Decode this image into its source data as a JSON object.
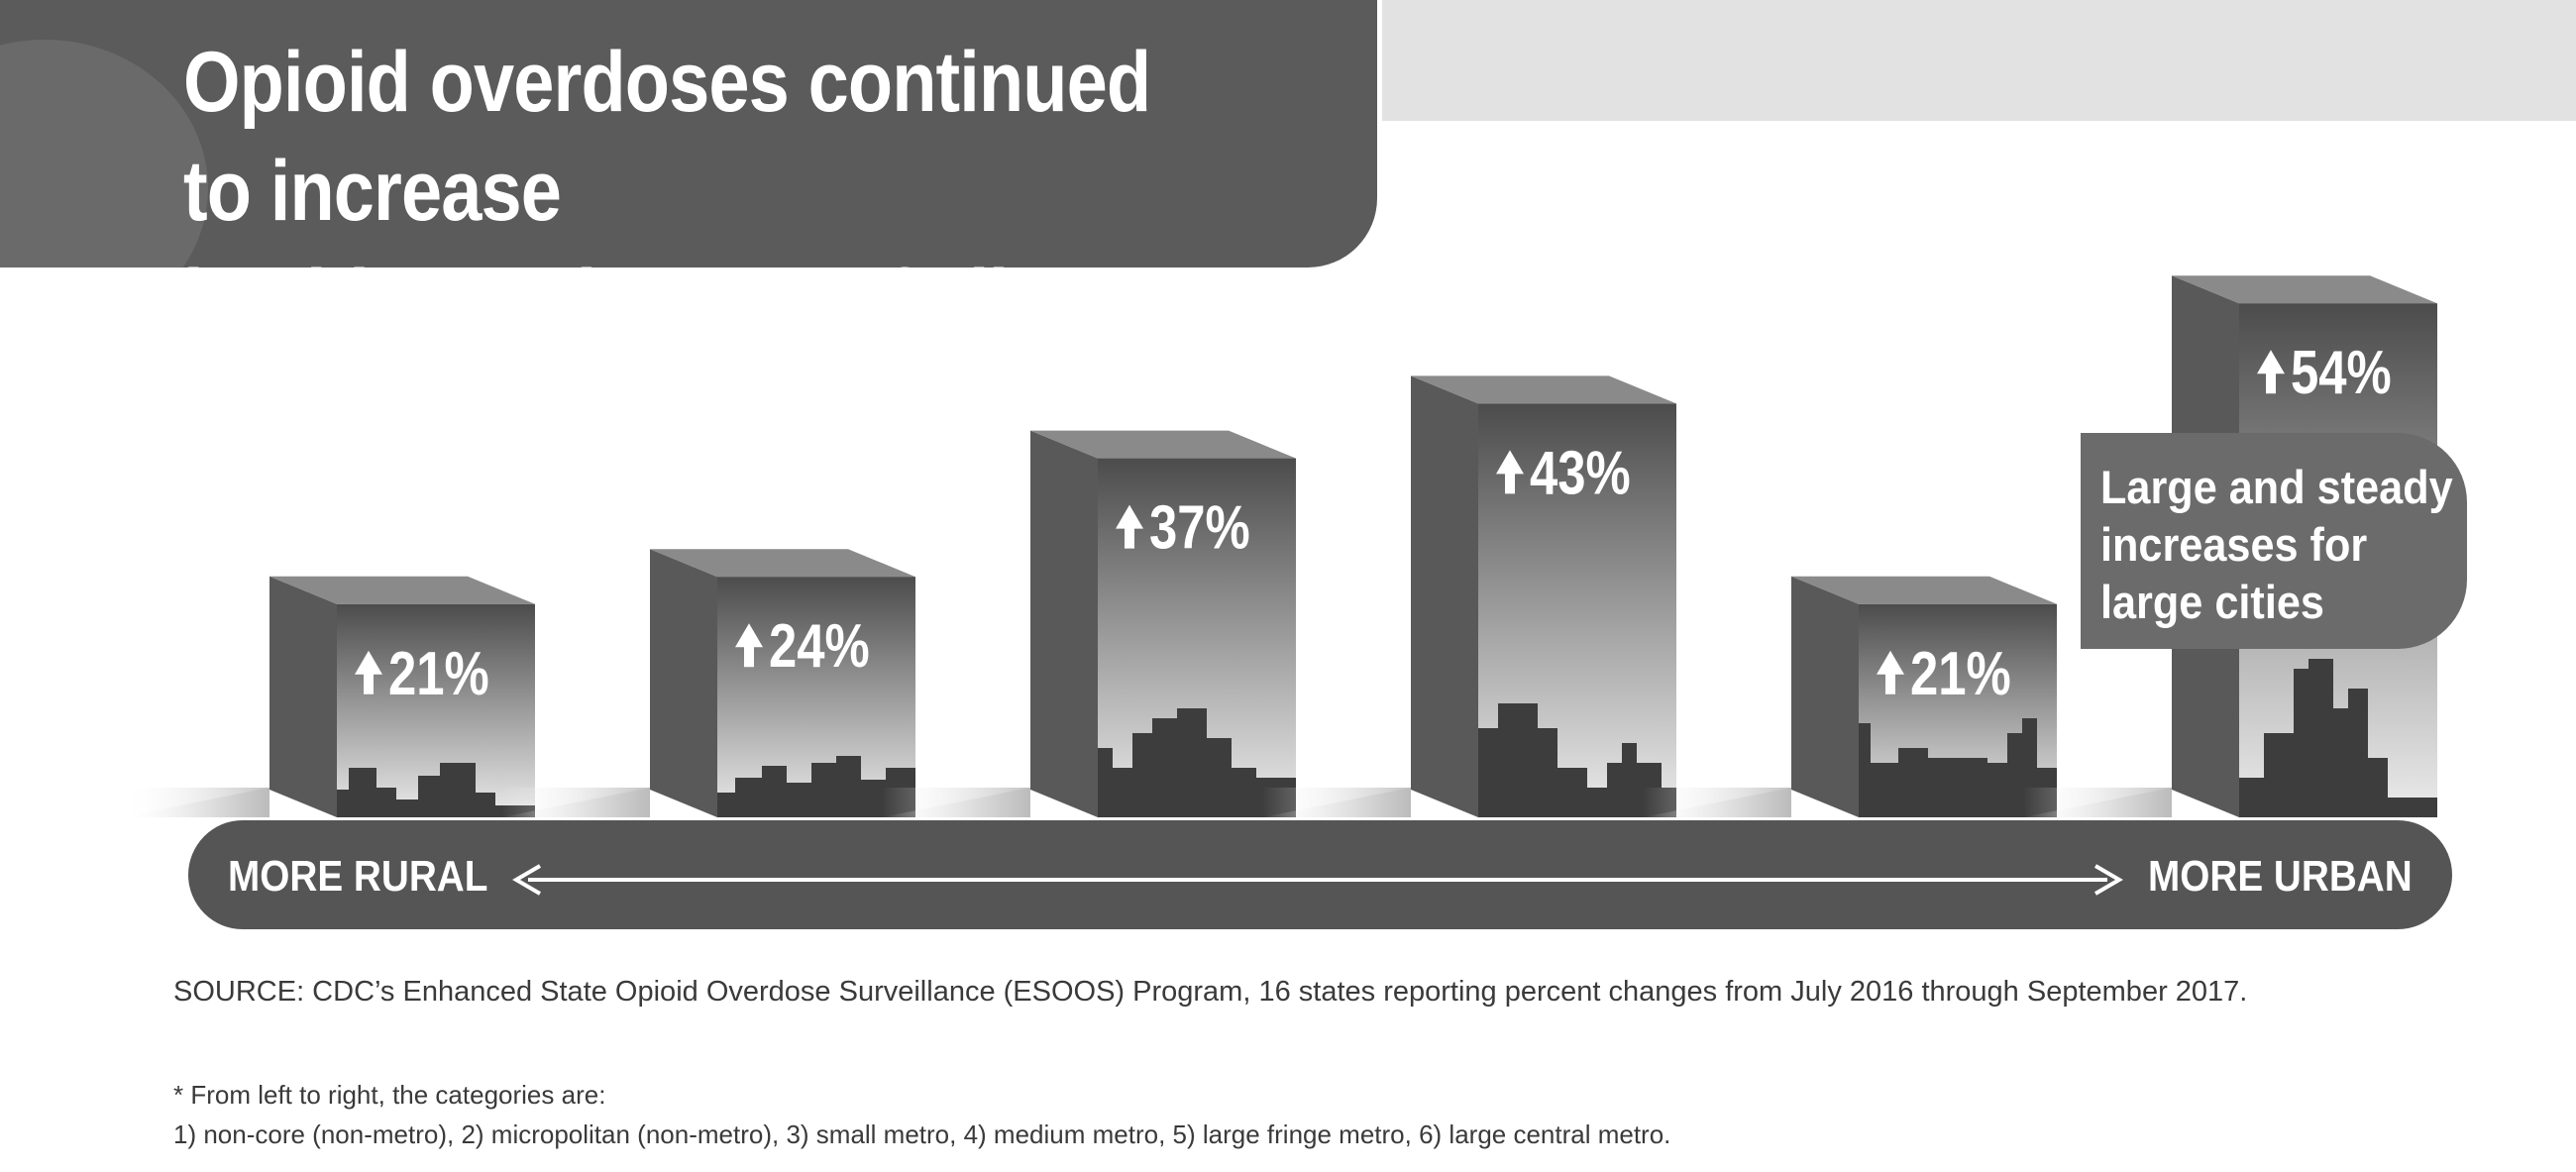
{
  "title": "Opioid overdoses continued to increase\nin cities and towns of all types.*",
  "axis": {
    "left_label": "MORE RURAL",
    "right_label": "MORE URBAN"
  },
  "callout": "Large and steady\nincreases for\nlarge cities",
  "source": "SOURCE: CDC’s Enhanced State Opioid Overdose Surveillance (ESOOS) Program, 16 states reporting percent changes from July 2016 through September 2017.",
  "footnote": {
    "line1": "* From left to right, the categories are:",
    "line2": "1) non-core (non-metro), 2) micropolitan (non-metro), 3) small metro, 4) medium metro, 5) large fringe metro, 6) large central metro."
  },
  "colors": {
    "bar_front_top": "#4c4c4c",
    "bar_front_bottom": "#e8e8e8",
    "bar_side": "#595959",
    "bar_top": "#8a8a8a",
    "skyline": "#3d3d3d",
    "axis_bar": "#555555"
  },
  "chart_data": {
    "type": "bar",
    "title": "Opioid overdoses continued to increase in cities and towns of all types.*",
    "categories": [
      "non-core (non-metro)",
      "micropolitan (non-metro)",
      "small metro",
      "medium metro",
      "large fringe metro",
      "large central metro"
    ],
    "values": [
      21,
      24,
      37,
      43,
      21,
      54
    ],
    "labels": [
      "21%",
      "24%",
      "37%",
      "43%",
      "21%",
      "54%"
    ],
    "unit": "percent change",
    "xlabel_left": "MORE RURAL",
    "xlabel_right": "MORE URBAN",
    "ylim": [
      0,
      60
    ]
  }
}
